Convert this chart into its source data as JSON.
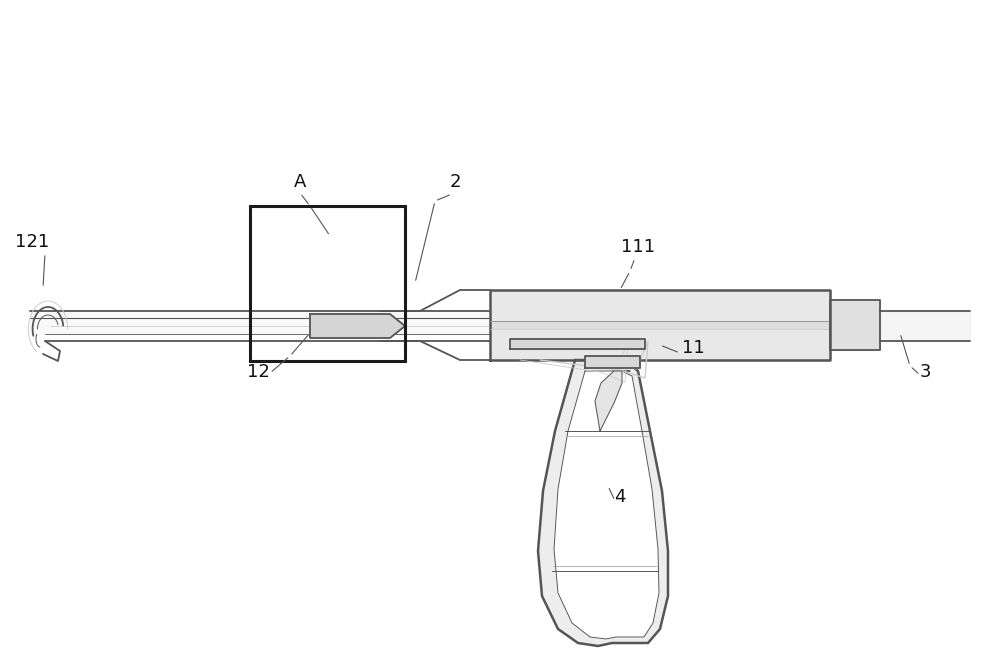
{
  "bg_color": "#ffffff",
  "line_color": "#555555",
  "light_line_color": "#999999",
  "lighter_line_color": "#cccccc",
  "figsize": [
    10.0,
    6.51
  ],
  "dpi": 100,
  "label_fontsize": 13
}
